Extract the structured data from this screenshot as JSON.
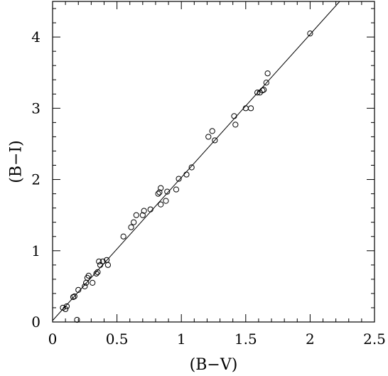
{
  "chart_data": {
    "type": "scatter",
    "title": "",
    "xlabel": "(B−V)",
    "ylabel": "(B−I)",
    "xlim": [
      0,
      2.5
    ],
    "ylim": [
      0,
      4.5
    ],
    "x_ticks": [
      0,
      0.5,
      1,
      1.5,
      2,
      2.5
    ],
    "x_tick_labels": [
      "0",
      "0.5",
      "1",
      "1.5",
      "2",
      "2.5"
    ],
    "y_ticks": [
      0,
      1,
      2,
      3,
      4
    ],
    "y_tick_labels": [
      "0",
      "1",
      "2",
      "3",
      "4"
    ],
    "grid": false,
    "marker": "open-circle",
    "colors": {
      "ink": "#000000",
      "background": "#ffffff"
    },
    "points": [
      {
        "x": 0.08,
        "y": 0.2
      },
      {
        "x": 0.1,
        "y": 0.18
      },
      {
        "x": 0.11,
        "y": 0.22
      },
      {
        "x": 0.16,
        "y": 0.35
      },
      {
        "x": 0.17,
        "y": 0.36
      },
      {
        "x": 0.19,
        "y": 0.03
      },
      {
        "x": 0.2,
        "y": 0.45
      },
      {
        "x": 0.25,
        "y": 0.5
      },
      {
        "x": 0.26,
        "y": 0.55
      },
      {
        "x": 0.27,
        "y": 0.62
      },
      {
        "x": 0.28,
        "y": 0.65
      },
      {
        "x": 0.31,
        "y": 0.55
      },
      {
        "x": 0.34,
        "y": 0.68
      },
      {
        "x": 0.35,
        "y": 0.7
      },
      {
        "x": 0.36,
        "y": 0.85
      },
      {
        "x": 0.37,
        "y": 0.8
      },
      {
        "x": 0.39,
        "y": 0.85
      },
      {
        "x": 0.42,
        "y": 0.87
      },
      {
        "x": 0.43,
        "y": 0.8
      },
      {
        "x": 0.55,
        "y": 1.2
      },
      {
        "x": 0.61,
        "y": 1.33
      },
      {
        "x": 0.63,
        "y": 1.4
      },
      {
        "x": 0.65,
        "y": 1.5
      },
      {
        "x": 0.7,
        "y": 1.5
      },
      {
        "x": 0.71,
        "y": 1.56
      },
      {
        "x": 0.76,
        "y": 1.58
      },
      {
        "x": 0.82,
        "y": 1.8
      },
      {
        "x": 0.83,
        "y": 1.82
      },
      {
        "x": 0.84,
        "y": 1.65
      },
      {
        "x": 0.84,
        "y": 1.88
      },
      {
        "x": 0.88,
        "y": 1.7
      },
      {
        "x": 0.89,
        "y": 1.83
      },
      {
        "x": 0.96,
        "y": 1.86
      },
      {
        "x": 0.98,
        "y": 2.01
      },
      {
        "x": 1.04,
        "y": 2.07
      },
      {
        "x": 1.08,
        "y": 2.17
      },
      {
        "x": 1.21,
        "y": 2.6
      },
      {
        "x": 1.24,
        "y": 2.68
      },
      {
        "x": 1.26,
        "y": 2.55
      },
      {
        "x": 1.41,
        "y": 2.89
      },
      {
        "x": 1.42,
        "y": 2.77
      },
      {
        "x": 1.5,
        "y": 3.0
      },
      {
        "x": 1.54,
        "y": 3.0
      },
      {
        "x": 1.59,
        "y": 3.22
      },
      {
        "x": 1.61,
        "y": 3.22
      },
      {
        "x": 1.63,
        "y": 3.25
      },
      {
        "x": 1.64,
        "y": 3.26
      },
      {
        "x": 1.66,
        "y": 3.36
      },
      {
        "x": 1.67,
        "y": 3.49
      },
      {
        "x": 2.0,
        "y": 4.05
      }
    ],
    "fit_line": {
      "x": [
        0,
        2.23
      ],
      "y": [
        0.02,
        4.5
      ]
    }
  }
}
